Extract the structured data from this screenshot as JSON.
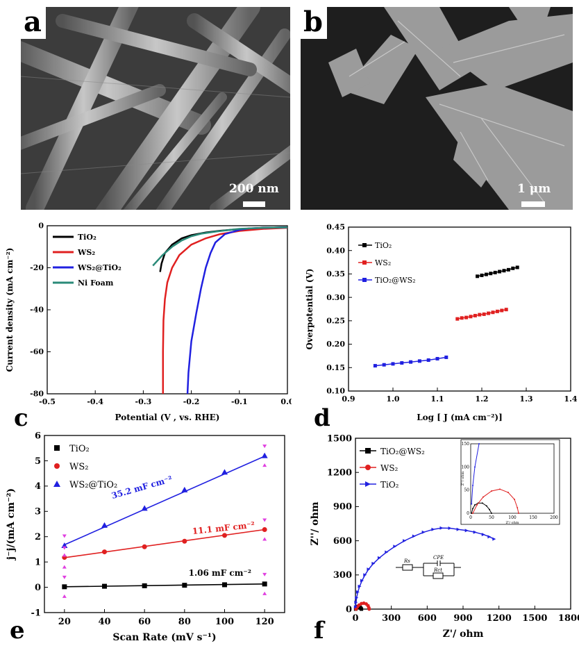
{
  "panels": {
    "a": {
      "letter": "a",
      "scale_label": "200 nm"
    },
    "b": {
      "letter": "b",
      "scale_label": "1 μm"
    },
    "c": {
      "letter": "c"
    },
    "d": {
      "letter": "d"
    },
    "e": {
      "letter": "e"
    },
    "f": {
      "letter": "f"
    }
  },
  "colors": {
    "black": "#000000",
    "red": "#e02020",
    "blue": "#2020e0",
    "teal": "#2a8a78",
    "magenta": "#e040e0"
  },
  "chart_data": [
    {
      "id": "c",
      "type": "line",
      "xlabel": "Potential (V , vs. RHE)",
      "ylabel": "Current density (mA cm⁻²)",
      "xlim": [
        -0.5,
        0.0
      ],
      "ylim": [
        -80,
        0
      ],
      "xticks": [
        "-0.5",
        "-0.4",
        "-0.3",
        "-0.2",
        "-0.1",
        "0.0"
      ],
      "yticks": [
        "-80",
        "-60",
        "-40",
        "-20",
        "0"
      ],
      "legend_position": "top-left",
      "series": [
        {
          "name": "TiO₂",
          "color": "#000000",
          "x": [
            -0.265,
            -0.262,
            -0.255,
            -0.24,
            -0.22,
            -0.2,
            -0.17,
            -0.14,
            -0.1,
            -0.05,
            0.0
          ],
          "y": [
            -22,
            -18,
            -13,
            -9,
            -6,
            -4.5,
            -3.2,
            -2.4,
            -1.6,
            -1.0,
            -0.8
          ]
        },
        {
          "name": "WS₂",
          "color": "#e02020",
          "x": [
            -0.259,
            -0.259,
            -0.258,
            -0.255,
            -0.25,
            -0.24,
            -0.225,
            -0.2,
            -0.17,
            -0.14,
            -0.1,
            -0.05,
            0.0
          ],
          "y": [
            -80,
            -60,
            -45,
            -35,
            -27,
            -20,
            -14,
            -9,
            -6,
            -4,
            -2.5,
            -1.5,
            -1.0
          ]
        },
        {
          "name": "WS₂@TiO₂",
          "color": "#2020e0",
          "x": [
            -0.208,
            -0.206,
            -0.2,
            -0.19,
            -0.18,
            -0.17,
            -0.16,
            -0.15,
            -0.13,
            -0.1,
            -0.08,
            -0.05,
            0.0
          ],
          "y": [
            -80,
            -70,
            -55,
            -42,
            -30,
            -20,
            -13,
            -8,
            -4,
            -2,
            -1.3,
            -1.0,
            -0.8
          ]
        },
        {
          "name": "Ni Foam",
          "color": "#2a8a78",
          "x": [
            -0.28,
            -0.26,
            -0.24,
            -0.22,
            -0.2,
            -0.18,
            -0.15,
            -0.12,
            -0.1,
            -0.05,
            0.0
          ],
          "y": [
            -19,
            -14,
            -10,
            -7,
            -5,
            -3.8,
            -2.8,
            -2.0,
            -1.5,
            -1.0,
            -0.8
          ]
        }
      ]
    },
    {
      "id": "d",
      "type": "line",
      "xlabel": "Log [ J (mA cm⁻²)]",
      "ylabel": "Overpotential (V)",
      "xlim": [
        0.9,
        1.4
      ],
      "ylim": [
        0.1,
        0.45
      ],
      "xticks": [
        "0.9",
        "1.0",
        "1.1",
        "1.2",
        "1.3",
        "1.4"
      ],
      "yticks": [
        "0.10",
        "0.15",
        "0.20",
        "0.25",
        "0.30",
        "0.35",
        "0.40",
        "0.45"
      ],
      "legend_position": "top-left",
      "series": [
        {
          "name": "TiO₂",
          "color": "#000000",
          "x": [
            1.19,
            1.2,
            1.21,
            1.22,
            1.23,
            1.24,
            1.25,
            1.26,
            1.27,
            1.28
          ],
          "y": [
            0.345,
            0.347,
            0.349,
            0.351,
            0.353,
            0.355,
            0.357,
            0.359,
            0.362,
            0.364
          ]
        },
        {
          "name": "WS₂",
          "color": "#e02020",
          "x": [
            1.145,
            1.155,
            1.165,
            1.175,
            1.185,
            1.195,
            1.205,
            1.215,
            1.225,
            1.235,
            1.245,
            1.255
          ],
          "y": [
            0.254,
            0.256,
            0.257,
            0.259,
            0.261,
            0.263,
            0.264,
            0.266,
            0.268,
            0.27,
            0.272,
            0.274
          ]
        },
        {
          "name": "TiO₂@WS₂",
          "color": "#2020e0",
          "x": [
            0.96,
            0.98,
            1.0,
            1.02,
            1.04,
            1.06,
            1.08,
            1.1,
            1.12
          ],
          "y": [
            0.154,
            0.156,
            0.158,
            0.16,
            0.162,
            0.164,
            0.166,
            0.169,
            0.172
          ]
        }
      ]
    },
    {
      "id": "e",
      "type": "scatter",
      "xlabel": "Scan Rate (mV s⁻¹)",
      "ylabel": "j⁻j/(mA cm⁻²)",
      "xlim": [
        10,
        130
      ],
      "ylim": [
        -1,
        6
      ],
      "xticks": [
        "20",
        "40",
        "60",
        "80",
        "100",
        "120"
      ],
      "yticks": [
        "-1",
        "0",
        "1",
        "2",
        "3",
        "4",
        "5",
        "6"
      ],
      "legend_position": "top-left",
      "annotations": [
        "35.2 mF cm⁻²",
        "11.1 mF cm⁻²",
        "1.06 mF cm⁻²"
      ],
      "series": [
        {
          "name": "TiO₂",
          "color": "#000000",
          "marker": "square",
          "x": [
            20,
            40,
            60,
            80,
            100,
            120
          ],
          "y": [
            0.02,
            0.04,
            0.06,
            0.08,
            0.1,
            0.13
          ],
          "fit": [
            [
              20,
              0.02
            ],
            [
              120,
              0.13
            ]
          ]
        },
        {
          "name": "WS₂",
          "color": "#e02020",
          "marker": "circle",
          "x": [
            20,
            40,
            60,
            80,
            100,
            120
          ],
          "y": [
            1.18,
            1.4,
            1.6,
            1.82,
            2.05,
            2.28
          ],
          "fit": [
            [
              20,
              1.17
            ],
            [
              120,
              2.28
            ]
          ]
        },
        {
          "name": "WS₂@TiO₂",
          "color": "#2020e0",
          "marker": "triangle",
          "x": [
            20,
            40,
            60,
            80,
            100,
            120
          ],
          "y": [
            1.65,
            2.45,
            3.12,
            3.85,
            4.55,
            5.2
          ],
          "fit": [
            [
              20,
              1.68
            ],
            [
              120,
              5.18
            ]
          ]
        }
      ]
    },
    {
      "id": "f",
      "type": "scatter",
      "xlabel": "Z'/ ohm",
      "ylabel": "Z''/ ohm",
      "xlim": [
        0,
        1800
      ],
      "ylim": [
        0,
        1500
      ],
      "xticks": [
        "0",
        "300",
        "600",
        "900",
        "1200",
        "1500",
        "1800"
      ],
      "yticks": [
        "0",
        "300",
        "600",
        "900",
        "1200",
        "1500"
      ],
      "legend_position": "top-left",
      "series": [
        {
          "name": "TiO₂@WS₂",
          "color": "#000000",
          "marker": "square",
          "x": [
            2,
            5,
            10,
            18,
            28,
            38,
            45,
            50
          ],
          "y": [
            0,
            10,
            18,
            22,
            22,
            16,
            8,
            0
          ]
        },
        {
          "name": "WS₂",
          "color": "#e02020",
          "marker": "circle",
          "x": [
            5,
            15,
            30,
            50,
            70,
            90,
            105,
            112,
            115
          ],
          "y": [
            0,
            18,
            35,
            48,
            52,
            45,
            30,
            12,
            0
          ]
        },
        {
          "name": "TiO₂",
          "color": "#2020e0",
          "marker": "triangle-right",
          "x": [
            2,
            5,
            10,
            20,
            35,
            55,
            80,
            110,
            150,
            200,
            260,
            330,
            410,
            490,
            570,
            650,
            720,
            790,
            860,
            930,
            1000,
            1070,
            1120,
            1160
          ],
          "y": [
            20,
            60,
            100,
            150,
            200,
            250,
            300,
            350,
            400,
            450,
            500,
            550,
            600,
            640,
            675,
            700,
            712,
            710,
            700,
            690,
            675,
            655,
            635,
            615
          ]
        }
      ],
      "inset": {
        "xlim": [
          0,
          200
        ],
        "ylim": [
          0,
          150
        ],
        "xticks": [
          "0",
          "50",
          "100",
          "150",
          "200"
        ],
        "yticks": [
          "0",
          "50",
          "100",
          "150"
        ],
        "xlabel": "Z'/ ohm",
        "ylabel": "Z''/ ohm"
      },
      "circuit_labels": [
        "Rs",
        "CPE",
        "Rct"
      ]
    }
  ]
}
